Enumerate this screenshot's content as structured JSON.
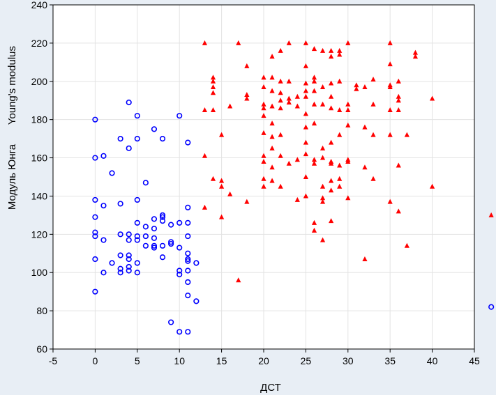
{
  "chart_data": {
    "type": "scatter",
    "xlabel": "ДСТ",
    "ylabel_line1": "Модуль Юнга",
    "ylabel_line2": "Young's modulus",
    "xlim": [
      -5,
      45
    ],
    "ylim": [
      60,
      240
    ],
    "xticks": [
      -5,
      0,
      5,
      10,
      15,
      20,
      25,
      30,
      35,
      40,
      45
    ],
    "yticks": [
      60,
      80,
      100,
      120,
      140,
      160,
      180,
      200,
      220,
      240
    ],
    "grid": true,
    "series": [
      {
        "marker": "circle",
        "color": "#0000ff",
        "points": [
          [
            0,
            180
          ],
          [
            0,
            160
          ],
          [
            0,
            138
          ],
          [
            0,
            129
          ],
          [
            0,
            121
          ],
          [
            0,
            119
          ],
          [
            0,
            107
          ],
          [
            0,
            90
          ],
          [
            1,
            161
          ],
          [
            1,
            135
          ],
          [
            1,
            117
          ],
          [
            1,
            100
          ],
          [
            2,
            152
          ],
          [
            2,
            105
          ],
          [
            3,
            170
          ],
          [
            3,
            136
          ],
          [
            3,
            120
          ],
          [
            3,
            109
          ],
          [
            3,
            102
          ],
          [
            3,
            100
          ],
          [
            4,
            189
          ],
          [
            4,
            165
          ],
          [
            4,
            120
          ],
          [
            4,
            117
          ],
          [
            4,
            109
          ],
          [
            4,
            107
          ],
          [
            4,
            103
          ],
          [
            4,
            101
          ],
          [
            5,
            182
          ],
          [
            5,
            170
          ],
          [
            5,
            138
          ],
          [
            5,
            126
          ],
          [
            5,
            119
          ],
          [
            5,
            117
          ],
          [
            5,
            105
          ],
          [
            5,
            100
          ],
          [
            6,
            147
          ],
          [
            6,
            124
          ],
          [
            6,
            119
          ],
          [
            6,
            114
          ],
          [
            7,
            175
          ],
          [
            7,
            128
          ],
          [
            7,
            123
          ],
          [
            7,
            114
          ],
          [
            7,
            113
          ],
          [
            7,
            118
          ],
          [
            8,
            170
          ],
          [
            8,
            130
          ],
          [
            8,
            129
          ],
          [
            8,
            127
          ],
          [
            8,
            114
          ],
          [
            8,
            108
          ],
          [
            9,
            125
          ],
          [
            9,
            116
          ],
          [
            9,
            115
          ],
          [
            9,
            74
          ],
          [
            10,
            182
          ],
          [
            10,
            126
          ],
          [
            10,
            113
          ],
          [
            10,
            101
          ],
          [
            10,
            99
          ],
          [
            10,
            69
          ],
          [
            11,
            168
          ],
          [
            11,
            134
          ],
          [
            11,
            126
          ],
          [
            11,
            119
          ],
          [
            11,
            110
          ],
          [
            11,
            107
          ],
          [
            11,
            106
          ],
          [
            11,
            101
          ],
          [
            11,
            95
          ],
          [
            11,
            88
          ],
          [
            11,
            69
          ],
          [
            12,
            105
          ],
          [
            12,
            85
          ],
          [
            47,
            82
          ]
        ]
      },
      {
        "marker": "triangle",
        "color": "#ff0000",
        "points": [
          [
            13,
            220
          ],
          [
            13,
            185
          ],
          [
            13,
            161
          ],
          [
            13,
            134
          ],
          [
            14,
            202
          ],
          [
            14,
            200
          ],
          [
            14,
            197
          ],
          [
            14,
            194
          ],
          [
            14,
            185
          ],
          [
            14,
            149
          ],
          [
            15,
            172
          ],
          [
            15,
            148
          ],
          [
            15,
            145
          ],
          [
            15,
            129
          ],
          [
            16,
            187
          ],
          [
            16,
            141
          ],
          [
            17,
            220
          ],
          [
            17,
            96
          ],
          [
            18,
            208
          ],
          [
            18,
            193
          ],
          [
            18,
            191
          ],
          [
            18,
            137
          ],
          [
            20,
            202
          ],
          [
            20,
            197
          ],
          [
            20,
            188
          ],
          [
            20,
            186
          ],
          [
            20,
            182
          ],
          [
            20,
            173
          ],
          [
            20,
            161
          ],
          [
            20,
            158
          ],
          [
            20,
            149
          ],
          [
            20,
            145
          ],
          [
            21,
            213
          ],
          [
            21,
            202
          ],
          [
            21,
            195
          ],
          [
            21,
            187
          ],
          [
            21,
            178
          ],
          [
            21,
            171
          ],
          [
            21,
            165
          ],
          [
            21,
            155
          ],
          [
            21,
            148
          ],
          [
            22,
            216
          ],
          [
            22,
            200
          ],
          [
            22,
            194
          ],
          [
            22,
            190
          ],
          [
            22,
            186
          ],
          [
            22,
            172
          ],
          [
            22,
            161
          ],
          [
            22,
            145
          ],
          [
            23,
            220
          ],
          [
            23,
            200
          ],
          [
            23,
            191
          ],
          [
            23,
            189
          ],
          [
            23,
            157
          ],
          [
            24,
            192
          ],
          [
            24,
            187
          ],
          [
            24,
            159
          ],
          [
            24,
            138
          ],
          [
            25,
            220
          ],
          [
            25,
            208
          ],
          [
            25,
            199
          ],
          [
            25,
            195
          ],
          [
            25,
            192
          ],
          [
            25,
            183
          ],
          [
            25,
            176
          ],
          [
            25,
            168
          ],
          [
            25,
            162
          ],
          [
            25,
            150
          ],
          [
            25,
            140
          ],
          [
            26,
            217
          ],
          [
            26,
            202
          ],
          [
            26,
            200
          ],
          [
            26,
            195
          ],
          [
            26,
            188
          ],
          [
            26,
            178
          ],
          [
            26,
            159
          ],
          [
            26,
            157
          ],
          [
            26,
            126
          ],
          [
            26,
            122
          ],
          [
            27,
            216
          ],
          [
            27,
            197
          ],
          [
            27,
            188
          ],
          [
            27,
            165
          ],
          [
            27,
            160
          ],
          [
            27,
            145
          ],
          [
            27,
            139
          ],
          [
            27,
            137
          ],
          [
            27,
            117
          ],
          [
            28,
            216
          ],
          [
            28,
            213
          ],
          [
            28,
            199
          ],
          [
            28,
            192
          ],
          [
            28,
            186
          ],
          [
            28,
            168
          ],
          [
            28,
            158
          ],
          [
            28,
            157
          ],
          [
            28,
            148
          ],
          [
            28,
            143
          ],
          [
            28,
            127
          ],
          [
            29,
            216
          ],
          [
            29,
            214
          ],
          [
            29,
            200
          ],
          [
            29,
            185
          ],
          [
            29,
            172
          ],
          [
            29,
            156
          ],
          [
            29,
            149
          ],
          [
            29,
            145
          ],
          [
            30,
            220
          ],
          [
            30,
            188
          ],
          [
            30,
            185
          ],
          [
            30,
            177
          ],
          [
            30,
            159
          ],
          [
            30,
            158
          ],
          [
            30,
            139
          ],
          [
            31,
            198
          ],
          [
            31,
            196
          ],
          [
            32,
            197
          ],
          [
            32,
            176
          ],
          [
            32,
            155
          ],
          [
            32,
            107
          ],
          [
            33,
            201
          ],
          [
            33,
            188
          ],
          [
            33,
            172
          ],
          [
            33,
            149
          ],
          [
            35,
            220
          ],
          [
            35,
            209
          ],
          [
            35,
            198
          ],
          [
            35,
            197
          ],
          [
            35,
            185
          ],
          [
            35,
            172
          ],
          [
            35,
            137
          ],
          [
            36,
            200
          ],
          [
            36,
            192
          ],
          [
            36,
            190
          ],
          [
            36,
            185
          ],
          [
            36,
            156
          ],
          [
            36,
            132
          ],
          [
            37,
            172
          ],
          [
            37,
            114
          ],
          [
            38,
            215
          ],
          [
            38,
            213
          ],
          [
            40,
            191
          ],
          [
            40,
            145
          ],
          [
            47,
            130
          ]
        ]
      }
    ]
  }
}
